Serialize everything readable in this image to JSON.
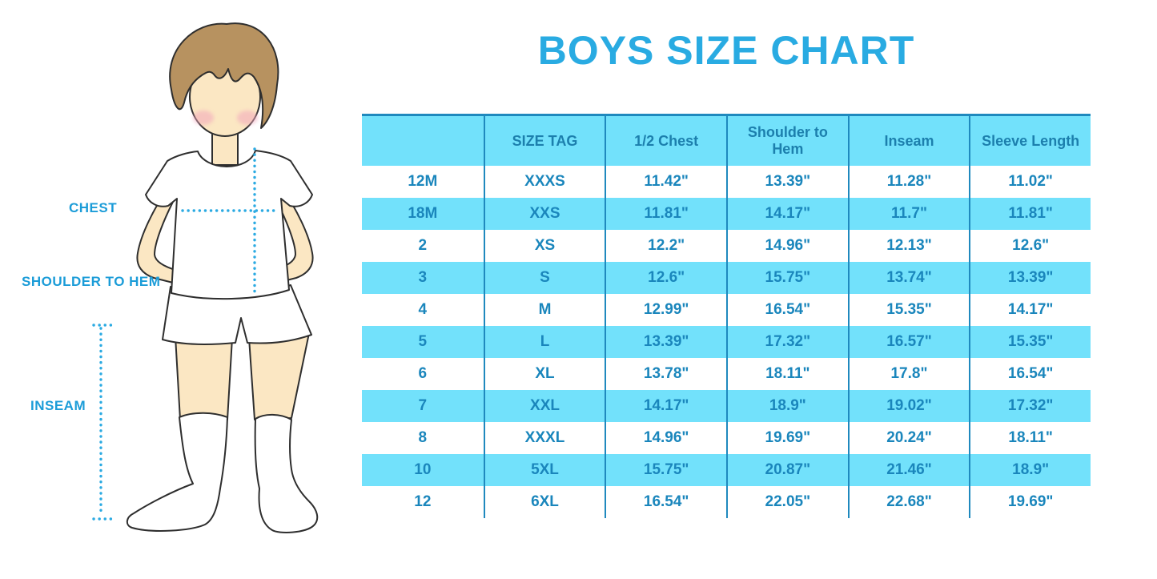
{
  "title": "BOYS SIZE CHART",
  "figure": {
    "illustration": "boy-in-tshirt-shorts-and-knee-socks",
    "labels": {
      "chest": "CHEST",
      "shoulder_to_hem": "SHOULDER TO HEM",
      "inseam": "INSEAM"
    }
  },
  "colors": {
    "title_blue": "#29ABE2",
    "band_cyan": "#72E1FB",
    "grid_line_blue": "#1F89BE",
    "cell_text_blue": "#1A86BC",
    "label_blue": "#1B9CD8",
    "dotted_line_blue": "#2BAAE2",
    "skin": "#FBE7C3",
    "hair": "#B79260"
  },
  "chart_data": {
    "type": "table",
    "title": "BOYS SIZE CHART",
    "columns": [
      "",
      "SIZE TAG",
      "1/2 Chest",
      "Shoulder to Hem",
      "Inseam",
      "Sleeve Length"
    ],
    "rows": [
      [
        "12M",
        "XXXS",
        "11.42\"",
        "13.39\"",
        "11.28\"",
        "11.02\""
      ],
      [
        "18M",
        "XXS",
        "11.81\"",
        "14.17\"",
        "11.7\"",
        "11.81\""
      ],
      [
        "2",
        "XS",
        "12.2\"",
        "14.96\"",
        "12.13\"",
        "12.6\""
      ],
      [
        "3",
        "S",
        "12.6\"",
        "15.75\"",
        "13.74\"",
        "13.39\""
      ],
      [
        "4",
        "M",
        "12.99\"",
        "16.54\"",
        "15.35\"",
        "14.17\""
      ],
      [
        "5",
        "L",
        "13.39\"",
        "17.32\"",
        "16.57\"",
        "15.35\""
      ],
      [
        "6",
        "XL",
        "13.78\"",
        "18.11\"",
        "17.8\"",
        "16.54\""
      ],
      [
        "7",
        "XXL",
        "14.17\"",
        "18.9\"",
        "19.02\"",
        "17.32\""
      ],
      [
        "8",
        "XXXL",
        "14.96\"",
        "19.69\"",
        "20.24\"",
        "18.11\""
      ],
      [
        "10",
        "5XL",
        "15.75\"",
        "20.87\"",
        "21.46\"",
        "18.9\""
      ],
      [
        "12",
        "6XL",
        "16.54\"",
        "22.05\"",
        "22.68\"",
        "19.69\""
      ]
    ],
    "banding": "header and every second data row are cyan",
    "legend_position": "none",
    "grid": "vertical separators only, top border"
  }
}
